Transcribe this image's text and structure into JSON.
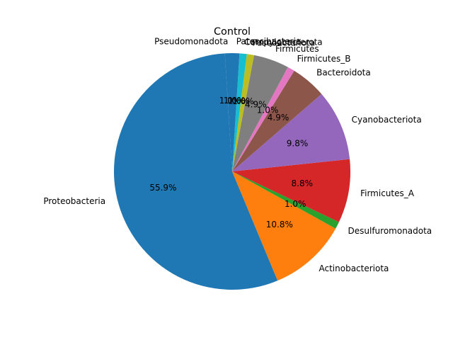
{
  "chart_data": {
    "type": "pie",
    "title": "Control",
    "start_angle_deg": 90,
    "direction": "counterclockwise",
    "categories": [
      "Pseudomonadota",
      "Proteobacteria",
      "Actinobacteriota",
      "Desulfuromonadota",
      "Firmicutes_A",
      "Cyanobacteriota",
      "Bacteroidota",
      "Firmicutes_B",
      "Firmicutes",
      "Fusobacteriota",
      "Campylobacterota",
      "Patescibacteria"
    ],
    "values": [
      1.0,
      55.9,
      10.8,
      1.0,
      8.8,
      9.8,
      4.9,
      1.0,
      4.9,
      1.0,
      1.0,
      1.0
    ],
    "pct_labels": [
      "1.0%",
      "55.9%",
      "10.8%",
      "1.0%",
      "8.8%",
      "9.8%",
      "4.9%",
      "1.0%",
      "4.9%",
      "1.0%",
      "1.0%",
      "1.0%"
    ],
    "colors": [
      "#1f77b4",
      "#1f77b4",
      "#ff7f0e",
      "#2ca02c",
      "#d62728",
      "#9467bd",
      "#8c564b",
      "#e377c2",
      "#7f7f7f",
      "#bcbd22",
      "#17becf",
      "#1f77b4"
    ]
  }
}
